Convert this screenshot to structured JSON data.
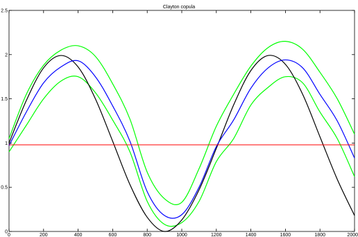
{
  "chart_data": {
    "type": "line",
    "title": "Clayton copula",
    "xlabel": "",
    "ylabel": "",
    "xlim": [
      0,
      2000
    ],
    "ylim": [
      0,
      2.5
    ],
    "grid": false,
    "x_ticks": [
      0,
      200,
      400,
      600,
      800,
      1000,
      1200,
      1400,
      1600,
      1800,
      2000
    ],
    "x_tick_labels": [
      "0",
      "200",
      "400",
      "600",
      "800",
      "1000",
      "1200",
      "1400",
      "1600",
      "1800",
      "2000"
    ],
    "y_ticks": [
      0,
      0.5,
      1,
      1.5,
      2,
      2.5
    ],
    "y_tick_labels": [
      "0",
      "0.5",
      "1",
      "1.5",
      "2",
      "2.5"
    ],
    "x": [
      0,
      100,
      200,
      300,
      400,
      500,
      600,
      700,
      800,
      900,
      1000,
      1100,
      1200,
      1300,
      1400,
      1500,
      1600,
      1700,
      1800,
      1900,
      2000
    ],
    "series": [
      {
        "color": "#000000",
        "values": [
          1.0,
          1.48,
          1.85,
          1.99,
          1.86,
          1.5,
          1.02,
          0.53,
          0.16,
          0.0,
          0.13,
          0.47,
          0.94,
          1.43,
          1.82,
          1.99,
          1.89,
          1.55,
          1.07,
          0.59,
          0.18
        ]
      },
      {
        "color": "#0000ff",
        "values": [
          0.97,
          1.35,
          1.68,
          1.86,
          1.93,
          1.75,
          1.42,
          1.02,
          0.45,
          0.18,
          0.19,
          0.5,
          0.96,
          1.26,
          1.62,
          1.85,
          1.94,
          1.85,
          1.55,
          1.25,
          0.83
        ]
      },
      {
        "color": "#00ff00",
        "values": [
          1.05,
          1.55,
          1.88,
          2.05,
          2.1,
          1.98,
          1.67,
          1.27,
          0.67,
          0.37,
          0.33,
          0.71,
          1.19,
          1.55,
          1.87,
          2.08,
          2.15,
          2.06,
          1.8,
          1.5,
          1.1
        ]
      },
      {
        "color": "#00ff00",
        "values": [
          0.9,
          1.2,
          1.5,
          1.7,
          1.75,
          1.57,
          1.26,
          0.9,
          0.34,
          0.08,
          0.1,
          0.34,
          0.79,
          1.05,
          1.43,
          1.63,
          1.75,
          1.68,
          1.35,
          1.05,
          0.62
        ]
      },
      {
        "color": "#ff0000",
        "values": [
          0.98,
          0.98,
          0.98,
          0.98,
          0.98,
          0.98,
          0.98,
          0.98,
          0.98,
          0.98,
          0.98,
          0.98,
          0.98,
          0.98,
          0.98,
          0.98,
          0.98,
          0.98,
          0.98,
          0.98,
          0.98
        ]
      }
    ]
  }
}
